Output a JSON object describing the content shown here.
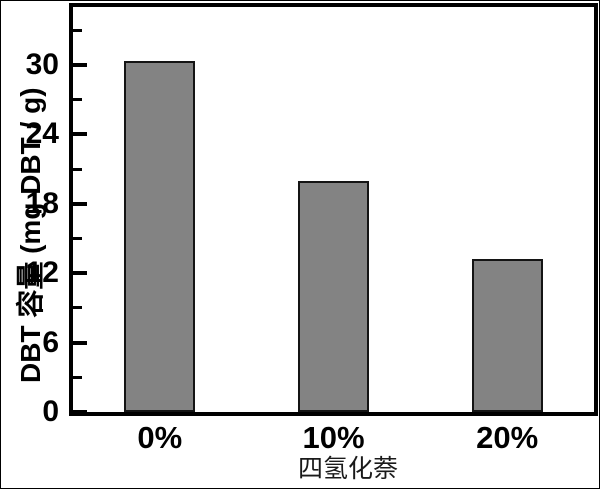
{
  "chart_data": {
    "type": "bar",
    "title": "",
    "categories": [
      "0%",
      "10%",
      "20%"
    ],
    "values": [
      30.3,
      20.0,
      13.2
    ],
    "xlabel": "四氢化萘",
    "ylabel": "DBT 容量 (mg DBT / g)",
    "ylim": [
      0,
      35
    ],
    "y_major_ticks": [
      0,
      6,
      12,
      18,
      24,
      30
    ],
    "y_minor_ticks": [
      3,
      9,
      15,
      21,
      27,
      33
    ],
    "grid": false,
    "legend": null,
    "bar_color": "#838383",
    "bar_border_color": "#141414",
    "axis_color": "#000000",
    "background_color": "#ffffff"
  }
}
